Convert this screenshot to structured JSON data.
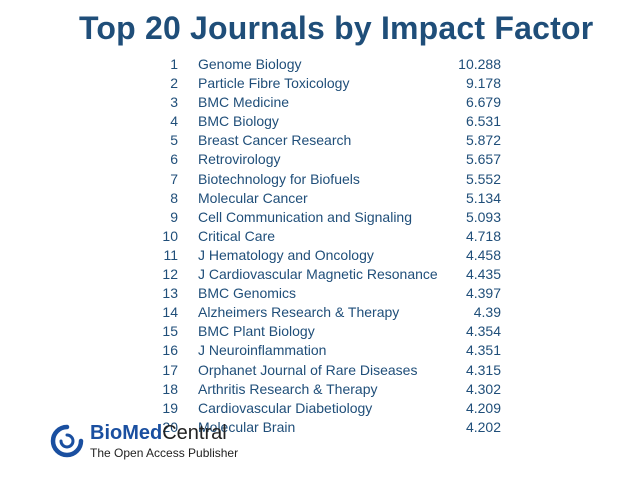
{
  "title": "Top 20 Journals by Impact Factor",
  "journals": [
    {
      "rank": "1",
      "name": "Genome Biology",
      "impact_factor": "10.288"
    },
    {
      "rank": "2",
      "name": "Particle Fibre Toxicology",
      "impact_factor": "9.178"
    },
    {
      "rank": "3",
      "name": "BMC  Medicine",
      "impact_factor": "6.679"
    },
    {
      "rank": "4",
      "name": "BMC Biology",
      "impact_factor": "6.531"
    },
    {
      "rank": "5",
      "name": "Breast Cancer Research",
      "impact_factor": "5.872"
    },
    {
      "rank": "6",
      "name": "Retrovirology",
      "impact_factor": "5.657"
    },
    {
      "rank": "7",
      "name": "Biotechnology for Biofuels",
      "impact_factor": "5.552"
    },
    {
      "rank": "8",
      "name": "Molecular Cancer",
      "impact_factor": "5.134"
    },
    {
      "rank": "9",
      "name": "Cell Communication and Signaling",
      "impact_factor": "5.093"
    },
    {
      "rank": "10",
      "name": "Critical Care",
      "impact_factor": "4.718"
    },
    {
      "rank": "11",
      "name": "J Hematology and Oncology",
      "impact_factor": "4.458"
    },
    {
      "rank": "12",
      "name": "J Cardiovascular Magnetic Resonance",
      "impact_factor": "4.435"
    },
    {
      "rank": "13",
      "name": "BMC Genomics",
      "impact_factor": "4.397"
    },
    {
      "rank": "14",
      "name": "Alzheimers Research & Therapy",
      "impact_factor": "4.39"
    },
    {
      "rank": "15",
      "name": "BMC Plant Biology",
      "impact_factor": "4.354"
    },
    {
      "rank": "16",
      "name": "J Neuroinflammation",
      "impact_factor": "4.351"
    },
    {
      "rank": "17",
      "name": "Orphanet Journal of  Rare Diseases",
      "impact_factor": "4.315"
    },
    {
      "rank": "18",
      "name": "Arthritis Research & Therapy",
      "impact_factor": "4.302"
    },
    {
      "rank": "19",
      "name": "Cardiovascular Diabetiology",
      "impact_factor": "4.209"
    },
    {
      "rank": "20",
      "name": "Molecular Brain",
      "impact_factor": "4.202"
    }
  ],
  "logo": {
    "wordmark_bio": "Bio",
    "wordmark_med": "Med",
    "wordmark_central": "Central",
    "tagline": "The Open Access Publisher"
  },
  "colors": {
    "text": "#1f4e79",
    "logo_blue": "#1a4fa0",
    "logo_dark": "#222222"
  }
}
